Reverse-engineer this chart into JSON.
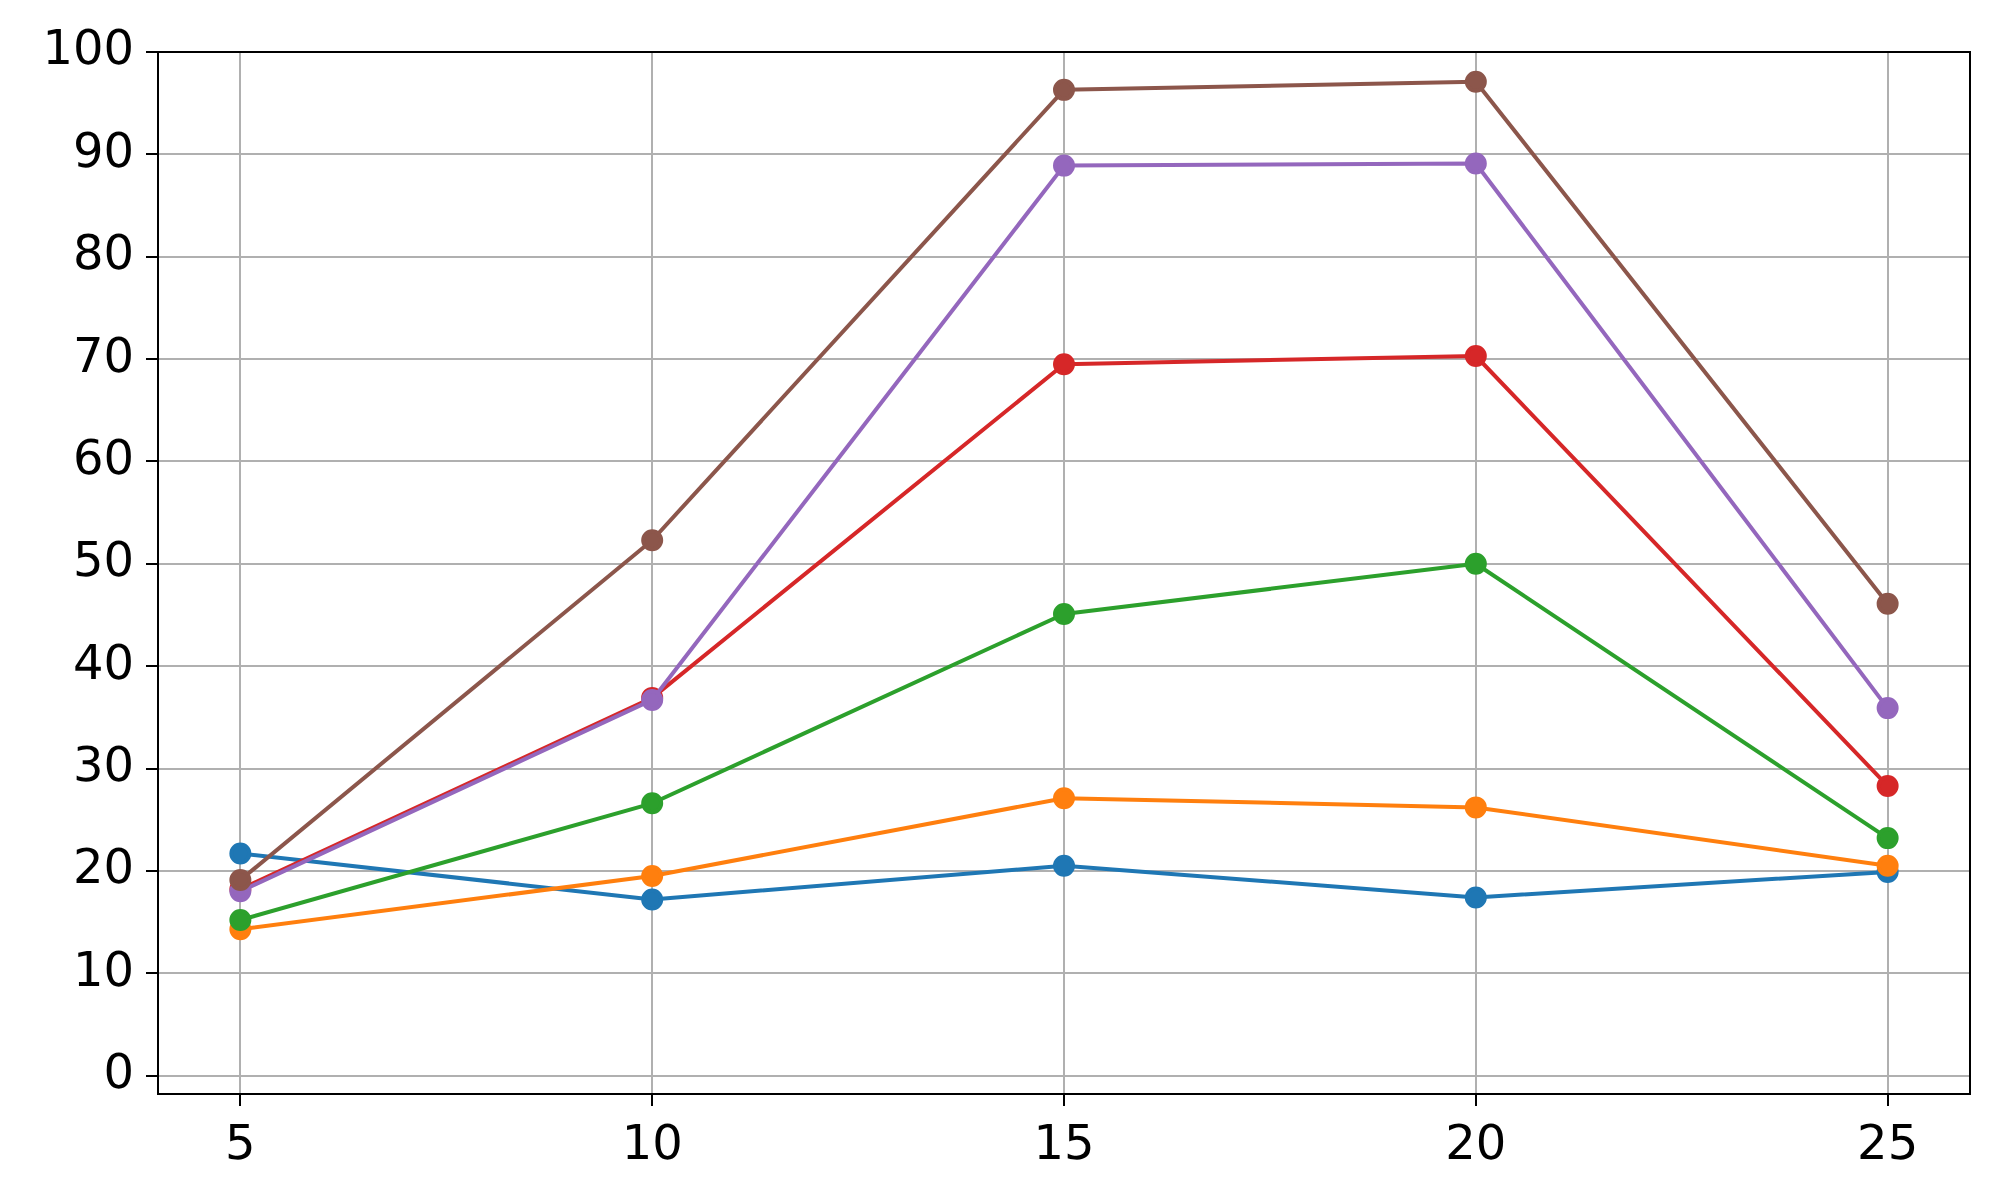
{
  "chart_data": {
    "type": "line",
    "x": [
      5,
      10,
      15,
      20,
      25
    ],
    "series": [
      {
        "color": "#1f77b4",
        "values": [
          21.7,
          17.2,
          20.5,
          17.4,
          19.9
        ]
      },
      {
        "color": "#ff7f0e",
        "values": [
          14.3,
          19.5,
          27.1,
          26.2,
          20.5
        ]
      },
      {
        "color": "#2ca02c",
        "values": [
          15.2,
          26.6,
          45.1,
          50.0,
          23.2
        ]
      },
      {
        "color": "#d62728",
        "values": [
          18.2,
          36.9,
          69.5,
          70.3,
          28.3
        ]
      },
      {
        "color": "#9467bd",
        "values": [
          18.0,
          36.7,
          88.9,
          89.1,
          35.9
        ]
      },
      {
        "color": "#8c564b",
        "values": [
          19.1,
          52.3,
          96.3,
          97.1,
          46.1
        ]
      }
    ],
    "xlim": [
      4,
      26
    ],
    "xticks": [
      5,
      10,
      15,
      20,
      25
    ],
    "ylim": [
      -1.8,
      100
    ],
    "yticks": [
      0,
      10,
      20,
      30,
      40,
      50,
      60,
      70,
      80,
      90,
      100
    ],
    "grid": true,
    "legend": false,
    "marker": "circle",
    "line_style": "solid"
  }
}
